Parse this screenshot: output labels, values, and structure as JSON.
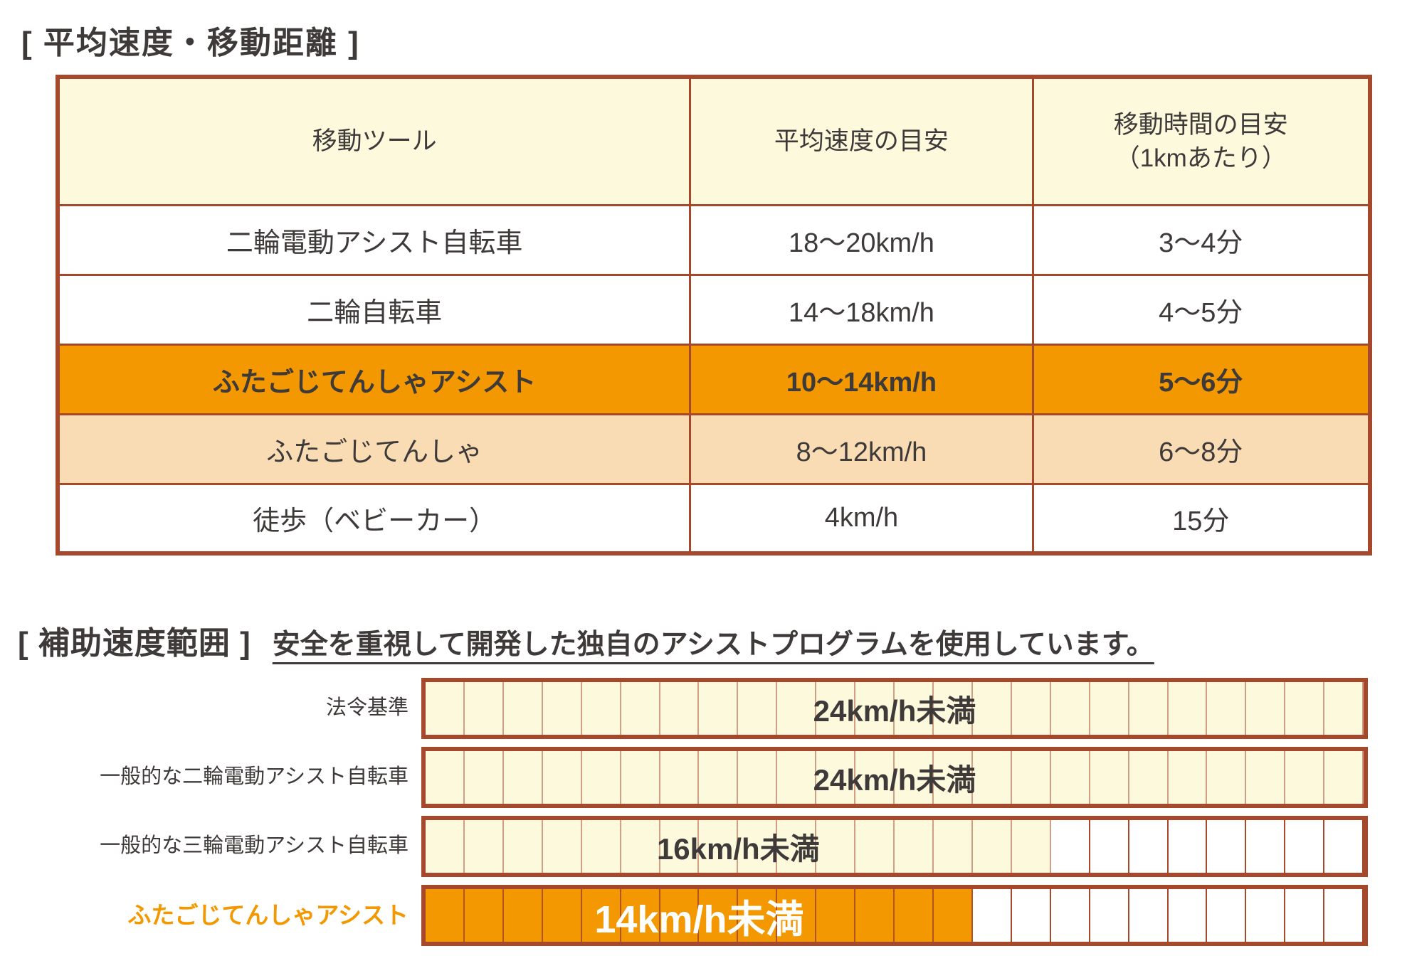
{
  "colors": {
    "border": "#a5482c",
    "cream": "#fdf9dc",
    "orange": "#f39800",
    "peach": "#fadcb4",
    "text_dark": "#3e3a39",
    "white": "#ffffff"
  },
  "section1": {
    "title": "[ 平均速度・移動距離 ]",
    "table": {
      "headers": {
        "tool": "移動ツール",
        "speed": "平均速度の目安",
        "time_line1": "移動時間の目安",
        "time_line2": "（1kmあたり）"
      },
      "rows": [
        {
          "tool": "二輪電動アシスト自転車",
          "speed": "18〜20km/h",
          "time": "3〜4分",
          "highlight": "none"
        },
        {
          "tool": "二輪自転車",
          "speed": "14〜18km/h",
          "time": "4〜5分",
          "highlight": "none"
        },
        {
          "tool": "ふたごじてんしゃアシスト",
          "speed": "10〜14km/h",
          "time": "5〜6分",
          "highlight": "strong"
        },
        {
          "tool": "ふたごじてんしゃ",
          "speed": "8〜12km/h",
          "time": "6〜8分",
          "highlight": "soft"
        },
        {
          "tool": "徒歩（ベビーカー）",
          "speed": "4km/h",
          "time": "15分",
          "highlight": "none"
        }
      ]
    }
  },
  "chart_data": {
    "type": "bar",
    "orientation": "horizontal",
    "title": "[ 補助速度範囲 ]",
    "subtitle": "安全を重視して開発した独自のアシストプログラムを使用しています。",
    "unit": "km/h",
    "xlim": [
      0,
      24
    ],
    "cell_count": 24,
    "grid": true,
    "categories": [
      "法令基準",
      "一般的な二輪電動アシスト自転車",
      "一般的な三輪電動アシスト自転車",
      "ふたごじてんしゃアシスト"
    ],
    "values": [
      24,
      24,
      16,
      14
    ],
    "bar_labels": [
      "24km/h未満",
      "24km/h未満",
      "16km/h未満",
      "14km/h未満"
    ],
    "fills": [
      "cream",
      "cream",
      "cream",
      "orange"
    ],
    "value_label_colors": [
      "dark",
      "dark",
      "dark",
      "white"
    ],
    "category_label_colors": [
      "dark",
      "dark",
      "dark",
      "orange"
    ]
  }
}
